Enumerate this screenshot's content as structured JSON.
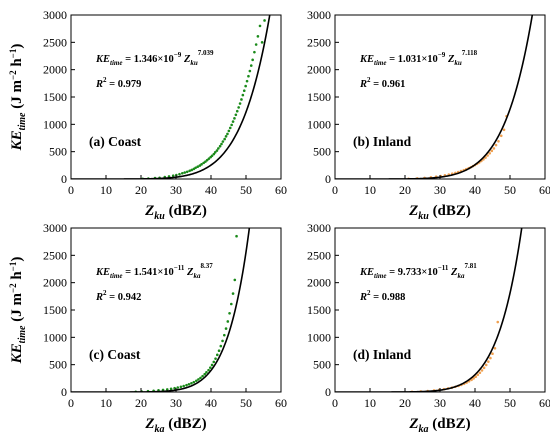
{
  "chart_data": [
    {
      "type": "scatter",
      "panel_label": "(a) Coast",
      "point_color": "#1a8a1a",
      "equation": {
        "prefix": "KE",
        "prefix_sub": "time",
        "coef": "= 1.346×10",
        "exp": "−9",
        "var": "Z",
        "var_sub": "ku",
        "power": "7.039"
      },
      "r2": {
        "label": "R",
        "sup": "2",
        "value": "= 0.979"
      },
      "fit": {
        "a": 1.346e-09,
        "b": 7.039
      },
      "xlim": [
        0,
        60
      ],
      "ylim": [
        0,
        3000
      ],
      "xticks": [
        0,
        10,
        20,
        30,
        40,
        50,
        60
      ],
      "yticks": [
        0,
        500,
        1000,
        1500,
        2000,
        2500,
        3000
      ],
      "xlabel": {
        "main": "Z",
        "sub": "ku",
        "unit": " (dBZ)"
      },
      "ylabel": {
        "main": "KE",
        "sub": "time",
        "unit": " (J m",
        "unit_sup": "−2",
        "unit2": " h",
        "unit2_sup": "−1",
        "close": ")"
      },
      "x": [
        20.5,
        22.1,
        24.0,
        25.3,
        26.8,
        28.0,
        29.2,
        30.1,
        31.0,
        31.8,
        32.5,
        33.2,
        33.9,
        34.5,
        35.1,
        35.6,
        36.2,
        36.8,
        37.3,
        37.9,
        38.4,
        38.9,
        39.4,
        39.9,
        40.3,
        40.8,
        41.2,
        41.7,
        42.1,
        42.6,
        43.0,
        43.4,
        43.9,
        44.3,
        44.7,
        45.1,
        45.5,
        45.9,
        46.3,
        46.7,
        47.1,
        47.5,
        47.9,
        48.3,
        48.7,
        49.1,
        49.5,
        49.9,
        50.3,
        50.7,
        51.1,
        51.5,
        51.9,
        52.4,
        52.9,
        53.4,
        54.0,
        54.6,
        55.3
      ],
      "y": [
        3,
        8,
        18,
        22,
        35,
        48,
        60,
        72,
        88,
        105,
        118,
        132,
        150,
        165,
        185,
        205,
        225,
        245,
        268,
        295,
        318,
        345,
        372,
        400,
        425,
        455,
        488,
        520,
        560,
        600,
        640,
        685,
        730,
        780,
        825,
        880,
        935,
        990,
        1050,
        1110,
        1175,
        1240,
        1310,
        1380,
        1455,
        1535,
        1615,
        1700,
        1790,
        1880,
        1975,
        2075,
        2180,
        2320,
        2460,
        2610,
        2800,
        2500,
        2900
      ]
    },
    {
      "type": "scatter",
      "panel_label": "(b) Inland",
      "point_color": "#f0a050",
      "equation": {
        "prefix": "KE",
        "prefix_sub": "time",
        "coef": "= 1.031×10",
        "exp": "−9",
        "var": "Z",
        "var_sub": "ku",
        "power": "7.118"
      },
      "r2": {
        "label": "R",
        "sup": "2",
        "value": "= 0.961"
      },
      "fit": {
        "a": 1.031e-09,
        "b": 7.118
      },
      "xlim": [
        0,
        60
      ],
      "ylim": [
        0,
        3000
      ],
      "xticks": [
        0,
        10,
        20,
        30,
        40,
        50,
        60
      ],
      "yticks": [
        0,
        500,
        1000,
        1500,
        2000,
        2500,
        3000
      ],
      "xlabel": {
        "main": "Z",
        "sub": "ku",
        "unit": " (dBZ)"
      },
      "ylabel": {
        "main": "",
        "sub": "",
        "unit": "",
        "unit_sup": "",
        "unit2": "",
        "unit2_sup": "",
        "close": ""
      },
      "x": [
        21.0,
        23.5,
        25.6,
        27.4,
        28.9,
        30.2,
        31.4,
        32.5,
        33.5,
        34.4,
        35.2,
        36.0,
        36.8,
        37.5,
        38.2,
        38.8,
        39.4,
        40.0,
        40.6,
        41.2,
        41.8,
        42.4,
        43.0,
        43.6,
        44.2,
        44.8,
        45.4,
        46.0,
        46.7,
        47.5,
        48.3,
        49.0
      ],
      "y": [
        4,
        10,
        20,
        30,
        42,
        55,
        68,
        82,
        98,
        112,
        128,
        145,
        162,
        180,
        198,
        215,
        235,
        255,
        278,
        302,
        330,
        360,
        392,
        430,
        470,
        515,
        560,
        620,
        690,
        790,
        900,
        1150
      ]
    },
    {
      "type": "scatter",
      "panel_label": "(c) Coast",
      "point_color": "#1a8a1a",
      "equation": {
        "prefix": "KE",
        "prefix_sub": "time",
        "coef": "= 1.541×10",
        "exp": "−11",
        "var": "Z",
        "var_sub": "ka",
        "power": "8.37"
      },
      "r2": {
        "label": "R",
        "sup": "2",
        "value": "= 0.942"
      },
      "fit": {
        "a": 1.541e-11,
        "b": 8.37
      },
      "xlim": [
        0,
        60
      ],
      "ylim": [
        0,
        3000
      ],
      "xticks": [
        0,
        10,
        20,
        30,
        40,
        50,
        60
      ],
      "yticks": [
        0,
        500,
        1000,
        1500,
        2000,
        2500,
        3000
      ],
      "xlabel": {
        "main": "Z",
        "sub": "ka",
        "unit": " (dBZ)"
      },
      "ylabel": {
        "main": "KE",
        "sub": "time",
        "unit": " (J m",
        "unit_sup": "−2",
        "unit2": " h",
        "unit2_sup": "−1",
        "close": ")"
      },
      "x": [
        18.5,
        20.2,
        22.0,
        23.6,
        25.0,
        26.3,
        27.5,
        28.6,
        29.6,
        30.5,
        31.4,
        32.2,
        33.0,
        33.7,
        34.4,
        35.1,
        35.8,
        36.4,
        37.0,
        37.6,
        38.2,
        38.7,
        39.3,
        39.8,
        40.3,
        40.8,
        41.3,
        41.8,
        42.3,
        42.8,
        43.3,
        43.8,
        44.3,
        44.8,
        45.3,
        45.8,
        46.3,
        46.8,
        47.3
      ],
      "y": [
        3,
        8,
        15,
        22,
        30,
        38,
        48,
        58,
        70,
        82,
        95,
        110,
        125,
        142,
        160,
        180,
        205,
        230,
        258,
        290,
        325,
        360,
        400,
        445,
        495,
        550,
        610,
        680,
        755,
        840,
        935,
        1040,
        1160,
        1290,
        1440,
        1610,
        1800,
        2050,
        2850
      ]
    },
    {
      "type": "scatter",
      "panel_label": "(d) Inland",
      "point_color": "#f0a050",
      "equation": {
        "prefix": "KE",
        "prefix_sub": "time",
        "coef": "= 9.733×10",
        "exp": "−11",
        "var": "Z",
        "var_sub": "ka",
        "power": "7.81"
      },
      "r2": {
        "label": "R",
        "sup": "2",
        "value": "= 0.988"
      },
      "fit": {
        "a": 9.733e-11,
        "b": 7.81
      },
      "xlim": [
        0,
        60
      ],
      "ylim": [
        0,
        3000
      ],
      "xticks": [
        0,
        10,
        20,
        30,
        40,
        50,
        60
      ],
      "yticks": [
        0,
        500,
        1000,
        1500,
        2000,
        2500,
        3000
      ],
      "xlabel": {
        "main": "Z",
        "sub": "ka",
        "unit": " (dBZ)"
      },
      "ylabel": {
        "main": "",
        "sub": "",
        "unit": "",
        "unit_sup": "",
        "unit2": "",
        "unit2_sup": "",
        "close": ""
      },
      "x": [
        22.0,
        24.5,
        26.5,
        28.3,
        29.8,
        31.1,
        32.3,
        33.4,
        34.4,
        35.3,
        36.1,
        36.9,
        37.6,
        38.3,
        39.0,
        39.6,
        40.2,
        40.8,
        41.4,
        42.0,
        42.6,
        43.2,
        43.8,
        44.4,
        45.0,
        45.7,
        46.5
      ],
      "y": [
        4,
        10,
        18,
        28,
        40,
        52,
        66,
        80,
        96,
        112,
        130,
        150,
        172,
        196,
        222,
        250,
        280,
        315,
        352,
        395,
        442,
        495,
        555,
        620,
        700,
        800,
        1280
      ]
    }
  ]
}
